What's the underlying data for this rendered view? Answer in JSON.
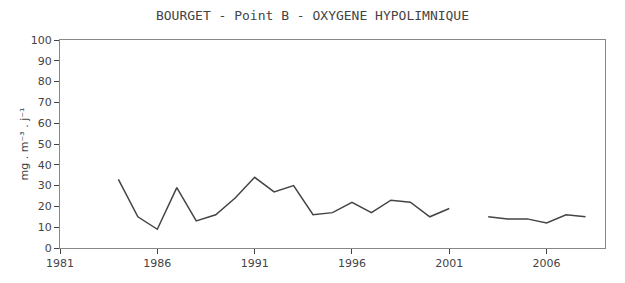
{
  "chart_data": {
    "type": "line",
    "title": "BOURGET - Point B - OXYGENE HYPOLIMNIQUE",
    "y_label": "mg . m⁻³ . j⁻¹",
    "x": [
      1984,
      1985,
      1986,
      1987,
      1988,
      1989,
      1990,
      1991,
      1992,
      1993,
      1994,
      1995,
      1996,
      1997,
      1998,
      1999,
      2000,
      2001,
      null,
      2003,
      2004,
      2005,
      2006,
      2007,
      2008
    ],
    "values": [
      33,
      15,
      9,
      29,
      13,
      16,
      24,
      34,
      27,
      30,
      16,
      17,
      22,
      17,
      23,
      22,
      15,
      19,
      null,
      15,
      14,
      14,
      12,
      16,
      15
    ],
    "color": "#444444",
    "xlim": [
      1981,
      2009
    ],
    "xticks": [
      1981,
      1986,
      1991,
      1996,
      2001,
      2006
    ],
    "ylim": [
      0,
      100
    ],
    "yticks": [
      0,
      10,
      20,
      30,
      40,
      50,
      60,
      70,
      80,
      90,
      100
    ],
    "grid": false
  }
}
